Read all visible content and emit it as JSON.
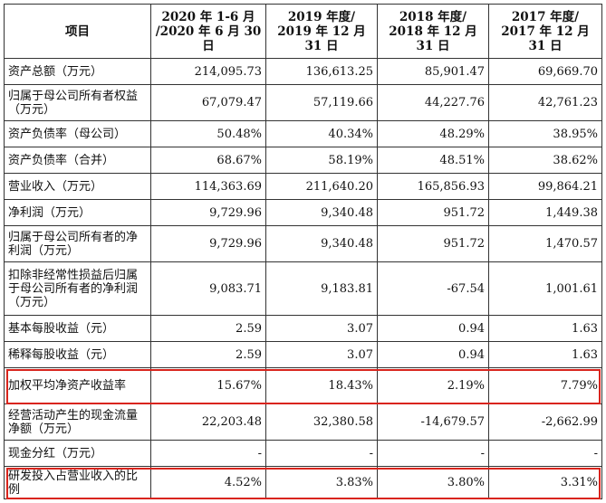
{
  "table": {
    "headers": [
      "项目",
      "2020 年 1-6 月\n/2020 年 6 月 30 日",
      "2019 年度/\n2019 年 12 月 31 日",
      "2018 年度/\n2018 年 12 月 31 日",
      "2017 年度/\n2017 年 12 月 31 日"
    ],
    "rows": [
      {
        "label": "资产总额（万元）",
        "values": [
          "214,095.73",
          "136,613.25",
          "85,901.47",
          "69,669.70"
        ],
        "highlighted": false
      },
      {
        "label": "归属于母公司所有者权益（万元）",
        "values": [
          "67,079.47",
          "57,119.66",
          "44,227.76",
          "42,761.23"
        ],
        "highlighted": false
      },
      {
        "label": "资产负债率（母公司）",
        "values": [
          "50.48%",
          "40.34%",
          "48.29%",
          "38.95%"
        ],
        "highlighted": false
      },
      {
        "label": "资产负债率（合并）",
        "values": [
          "68.67%",
          "58.19%",
          "48.51%",
          "38.62%"
        ],
        "highlighted": false
      },
      {
        "label": "营业收入（万元）",
        "values": [
          "114,363.69",
          "211,640.20",
          "165,856.93",
          "99,864.21"
        ],
        "highlighted": false
      },
      {
        "label": "净利润（万元）",
        "values": [
          "9,729.96",
          "9,340.48",
          "951.72",
          "1,449.38"
        ],
        "highlighted": false
      },
      {
        "label": "归属于母公司所有者的净利润（万元）",
        "values": [
          "9,729.96",
          "9,340.48",
          "951.72",
          "1,470.57"
        ],
        "highlighted": false
      },
      {
        "label": "扣除非经常性损益后归属于母公司所有者的净利润（万元）",
        "values": [
          "9,083.71",
          "9,183.81",
          "-67.54",
          "1,001.61"
        ],
        "highlighted": false
      },
      {
        "label": "基本每股收益（元）",
        "values": [
          "2.59",
          "3.07",
          "0.94",
          "1.63"
        ],
        "highlighted": false
      },
      {
        "label": "稀释每股收益（元）",
        "values": [
          "2.59",
          "3.07",
          "0.94",
          "1.63"
        ],
        "highlighted": false
      },
      {
        "label": "加权平均净资产收益率",
        "values": [
          "15.67%",
          "18.43%",
          "2.19%",
          "7.79%"
        ],
        "highlighted": true
      },
      {
        "label": "经营活动产生的现金流量净额（万元）",
        "values": [
          "22,203.48",
          "32,380.58",
          "-14,679.57",
          "-2,662.99"
        ],
        "highlighted": false
      },
      {
        "label": "现金分红（万元）",
        "values": [
          "-",
          "-",
          "-",
          "-"
        ],
        "highlighted": false
      },
      {
        "label": "研发投入占营业收入的比例",
        "values": [
          "4.52%",
          "3.83%",
          "3.80%",
          "3.31%"
        ],
        "highlighted": true
      }
    ],
    "highlight_color": "#d9241c",
    "border_color": "#333333"
  }
}
